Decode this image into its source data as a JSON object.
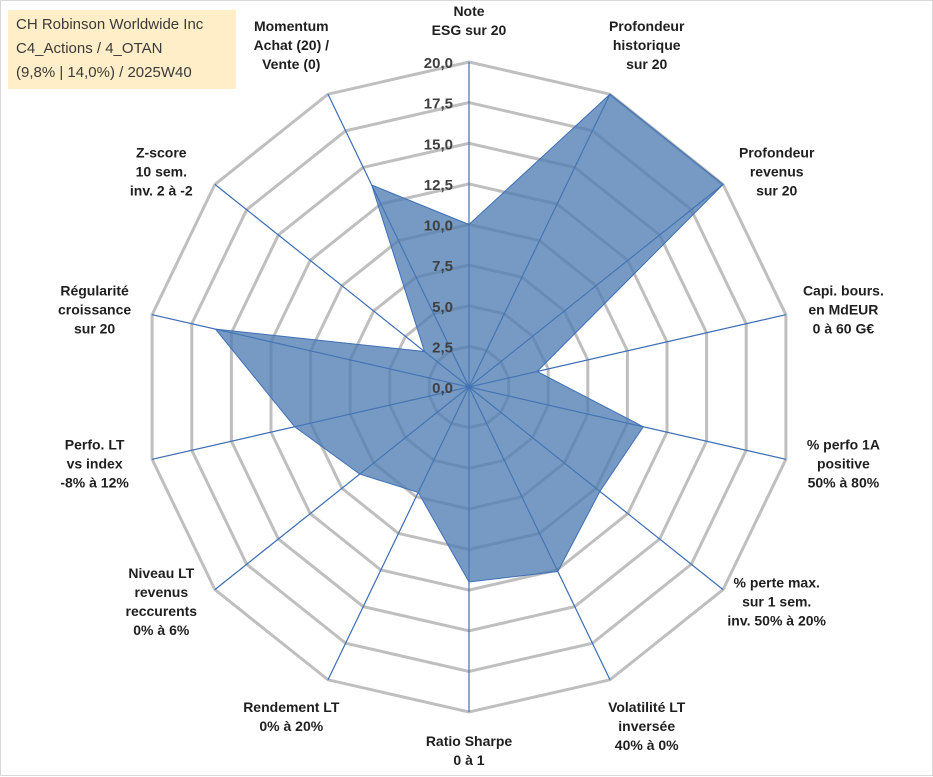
{
  "title_box": {
    "line1": "CH Robinson Worldwide Inc",
    "line2": "C4_Actions / 4_OTAN",
    "line3": "(9,8% | 14,0%) / 2025W40"
  },
  "colors": {
    "fill": "#4f7db4",
    "axis": "#3f6fb5",
    "grid": "#bfbfbf"
  },
  "chart_data": {
    "type": "radar",
    "rmin": 0,
    "rmax": 20,
    "tick_labels": [
      "0,0",
      "2,5",
      "5,0",
      "7,5",
      "10,0",
      "12,5",
      "15,0",
      "17,5",
      "20,0"
    ],
    "categories": [
      [
        "Note",
        "ESG sur 20"
      ],
      [
        "Profondeur",
        "historique",
        "sur 20"
      ],
      [
        "Profondeur",
        "revenus",
        "sur 20"
      ],
      [
        "Capi. bours.",
        "en MdEUR",
        "0 à 60 G€"
      ],
      [
        "% perfo 1A",
        "positive",
        "50% à 80%"
      ],
      [
        "% perte max.",
        "sur 1 sem.",
        "inv. 50% à 20%"
      ],
      [
        "Volatilité LT",
        "inversée",
        "40% à 0%"
      ],
      [
        "Ratio Sharpe",
        "0 à 1"
      ],
      [
        "Rendement LT",
        "0% à 20%"
      ],
      [
        "Niveau LT",
        "revenus",
        "reccurents",
        "0% à 6%"
      ],
      [
        "Perfo. LT",
        "vs index",
        "-8% à 12%"
      ],
      [
        "Régularité",
        "croissance",
        "sur 20"
      ],
      [
        "Z-score",
        "10 sem.",
        "inv. 2 à -2"
      ],
      [
        "Momentum",
        "Achat (20) /",
        "Vente (0)"
      ]
    ],
    "values": [
      10.0,
      20.0,
      20.0,
      4.3,
      11.0,
      10.3,
      12.6,
      12.0,
      7.2,
      8.6,
      11.0,
      16.0,
      3.5,
      13.8
    ],
    "grid": true,
    "legend": "none"
  }
}
